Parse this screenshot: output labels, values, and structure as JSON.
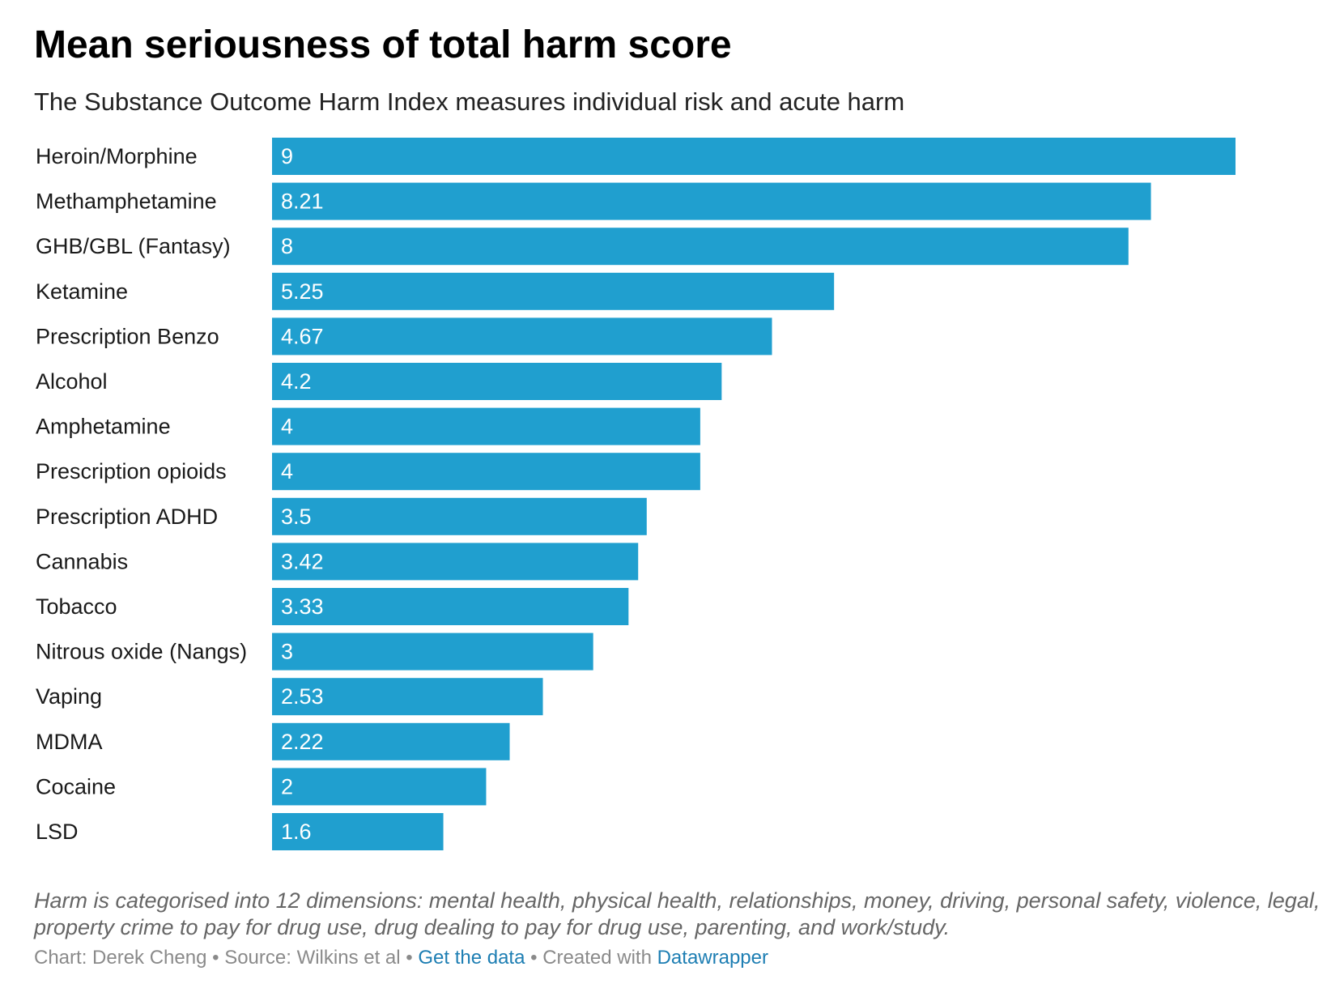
{
  "title": "Mean seriousness of total harm score",
  "subtitle": "The Substance Outcome Harm Index measures individual risk and acute harm",
  "notes": "Harm is categorised into 12 dimensions: mental health, physical health, relationships, money, driving, personal safety, violence, legal, property crime to pay for drug use, drug dealing to pay for drug use, parenting, and work/study.",
  "footer": {
    "chart_by": "Chart: Derek Cheng",
    "source": "Source: Wilkins et al",
    "get_data_link": "Get the data",
    "created_with": "Created with",
    "tool_link": "Datawrapper",
    "separator": "•"
  },
  "colors": {
    "bar": "#209fcf",
    "value_label": "#ffffff",
    "category_label": "#1a1a1a",
    "link": "#1d7eb3"
  },
  "chart_data": {
    "type": "bar",
    "orientation": "horizontal",
    "categories": [
      "Heroin/Morphine",
      "Methamphetamine",
      "GHB/GBL (Fantasy)",
      "Ketamine",
      "Prescription Benzo",
      "Alcohol",
      "Amphetamine",
      "Prescription opioids",
      "Prescription ADHD",
      "Cannabis",
      "Tobacco",
      "Nitrous oxide (Nangs)",
      "Vaping",
      "MDMA",
      "Cocaine",
      "LSD"
    ],
    "values": [
      9,
      8.21,
      8,
      5.25,
      4.67,
      4.2,
      4,
      4,
      3.5,
      3.42,
      3.33,
      3,
      2.53,
      2.22,
      2,
      1.6
    ],
    "value_labels": [
      "9",
      "8.21",
      "8",
      "5.25",
      "4.67",
      "4.2",
      "4",
      "4",
      "3.5",
      "3.42",
      "3.33",
      "3",
      "2.53",
      "2.22",
      "2",
      "1.6"
    ],
    "xlim": [
      0,
      9
    ],
    "grid": false,
    "legend": "none"
  }
}
